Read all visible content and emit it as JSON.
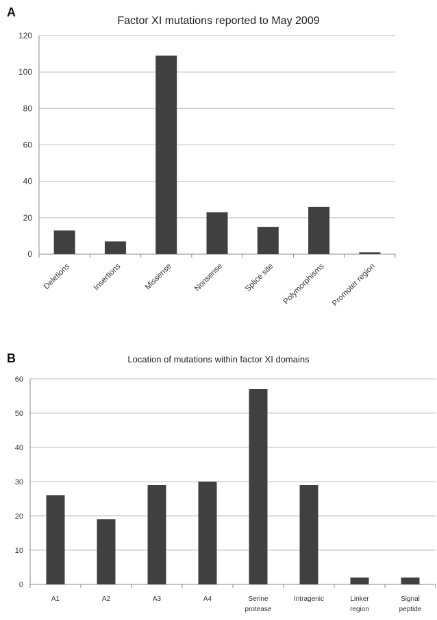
{
  "chart_data": [
    {
      "panel": "A",
      "type": "bar",
      "title": "Factor XI mutations reported to May 2009",
      "xlabel": "",
      "ylabel": "",
      "categories": [
        "Deletions",
        "Insertions",
        "Missense",
        "Nonsense",
        "Splice site",
        "Polymorphisms",
        "Promoter region"
      ],
      "values": [
        13,
        7,
        109,
        23,
        15,
        26,
        1
      ],
      "ylim": [
        0,
        120
      ],
      "yticks": [
        0,
        20,
        40,
        60,
        80,
        100,
        120
      ],
      "grid": true,
      "bar_color": "#404040",
      "tick_label_rotation": "diagonal"
    },
    {
      "panel": "B",
      "type": "bar",
      "title": "Location of mutations within factor XI domains",
      "xlabel": "",
      "ylabel": "",
      "categories": [
        "A1",
        "A2",
        "A3",
        "A4",
        "Serine protease",
        "Intragenic",
        "Linker region",
        "Signal peptide"
      ],
      "category_lines": [
        [
          "A1"
        ],
        [
          "A2"
        ],
        [
          "A3"
        ],
        [
          "A4"
        ],
        [
          "Serine",
          "protease"
        ],
        [
          "Intragenic"
        ],
        [
          "Linker",
          "region"
        ],
        [
          "Signal",
          "peptide"
        ]
      ],
      "values": [
        26,
        19,
        29,
        30,
        57,
        29,
        2,
        2
      ],
      "ylim": [
        0,
        60
      ],
      "yticks": [
        0,
        10,
        20,
        30,
        40,
        50,
        60
      ],
      "grid": true,
      "bar_color": "#404040",
      "tick_label_rotation": "horizontal"
    }
  ]
}
